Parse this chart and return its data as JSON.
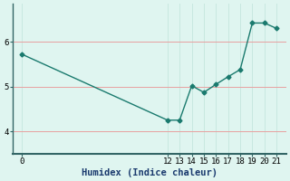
{
  "x": [
    0,
    12,
    13,
    14,
    15,
    16,
    17,
    18,
    19,
    20,
    21
  ],
  "y": [
    5.72,
    4.25,
    4.25,
    5.02,
    4.87,
    5.05,
    5.22,
    5.38,
    6.42,
    6.42,
    6.3
  ],
  "line_color": "#1a7a6e",
  "bg_color": "#dff5f0",
  "grid_color_h": "#e8a0a0",
  "grid_color_v": "#c8e8e0",
  "xlabel": "Humidex (Indice chaleur)",
  "xlabel_color": "#1a3a6e",
  "xlabel_fontsize": 7.5,
  "yticks": [
    4,
    5,
    6
  ],
  "xticks": [
    0,
    12,
    13,
    14,
    15,
    16,
    17,
    18,
    19,
    20,
    21
  ],
  "ylim": [
    3.5,
    6.85
  ],
  "xlim": [
    -0.8,
    21.8
  ],
  "marker": "D",
  "marker_size": 2.5,
  "line_width": 1.0,
  "tick_fontsize": 6.5,
  "spine_color": "#336666"
}
